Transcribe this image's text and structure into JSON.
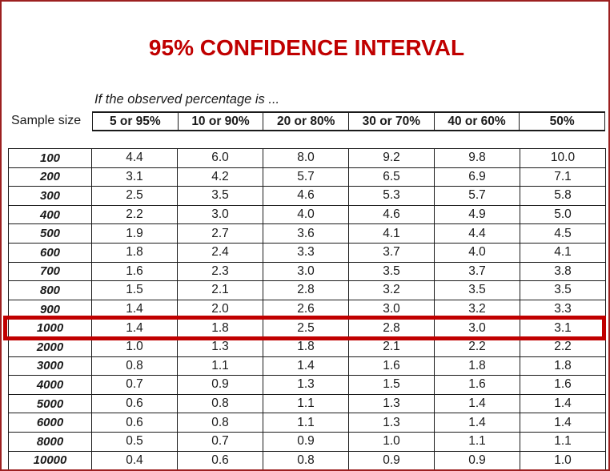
{
  "page": {
    "title": "95% CONFIDENCE INTERVAL",
    "caption": "If the observed percentage is ...",
    "sample_size_label": "Sample size"
  },
  "colors": {
    "title_red": "#c00000",
    "highlight_red": "#c00000",
    "page_border": "#9c2020",
    "grid_line": "#1a1a1a"
  },
  "chart_data": {
    "type": "table",
    "title": "95% CONFIDENCE INTERVAL",
    "caption": "If the observed percentage is ...",
    "row_header": "Sample size",
    "columns": [
      "5 or 95%",
      "10 or 90%",
      "20 or 80%",
      "30 or 70%",
      "40 or 60%",
      "50%"
    ],
    "highlighted_row": "1000",
    "rows": [
      {
        "sample_size": "100",
        "values": [
          "4.4",
          "6.0",
          "8.0",
          "9.2",
          "9.8",
          "10.0"
        ]
      },
      {
        "sample_size": "200",
        "values": [
          "3.1",
          "4.2",
          "5.7",
          "6.5",
          "6.9",
          "7.1"
        ]
      },
      {
        "sample_size": "300",
        "values": [
          "2.5",
          "3.5",
          "4.6",
          "5.3",
          "5.7",
          "5.8"
        ]
      },
      {
        "sample_size": "400",
        "values": [
          "2.2",
          "3.0",
          "4.0",
          "4.6",
          "4.9",
          "5.0"
        ]
      },
      {
        "sample_size": "500",
        "values": [
          "1.9",
          "2.7",
          "3.6",
          "4.1",
          "4.4",
          "4.5"
        ]
      },
      {
        "sample_size": "600",
        "values": [
          "1.8",
          "2.4",
          "3.3",
          "3.7",
          "4.0",
          "4.1"
        ]
      },
      {
        "sample_size": "700",
        "values": [
          "1.6",
          "2.3",
          "3.0",
          "3.5",
          "3.7",
          "3.8"
        ]
      },
      {
        "sample_size": "800",
        "values": [
          "1.5",
          "2.1",
          "2.8",
          "3.2",
          "3.5",
          "3.5"
        ]
      },
      {
        "sample_size": "900",
        "values": [
          "1.4",
          "2.0",
          "2.6",
          "3.0",
          "3.2",
          "3.3"
        ]
      },
      {
        "sample_size": "1000",
        "values": [
          "1.4",
          "1.8",
          "2.5",
          "2.8",
          "3.0",
          "3.1"
        ]
      },
      {
        "sample_size": "2000",
        "values": [
          "1.0",
          "1.3",
          "1.8",
          "2.1",
          "2.2",
          "2.2"
        ]
      },
      {
        "sample_size": "3000",
        "values": [
          "0.8",
          "1.1",
          "1.4",
          "1.6",
          "1.8",
          "1.8"
        ]
      },
      {
        "sample_size": "4000",
        "values": [
          "0.7",
          "0.9",
          "1.3",
          "1.5",
          "1.6",
          "1.6"
        ]
      },
      {
        "sample_size": "5000",
        "values": [
          "0.6",
          "0.8",
          "1.1",
          "1.3",
          "1.4",
          "1.4"
        ]
      },
      {
        "sample_size": "6000",
        "values": [
          "0.6",
          "0.8",
          "1.1",
          "1.3",
          "1.4",
          "1.4"
        ]
      },
      {
        "sample_size": "8000",
        "values": [
          "0.5",
          "0.7",
          "0.9",
          "1.0",
          "1.1",
          "1.1"
        ]
      },
      {
        "sample_size": "10000",
        "values": [
          "0.4",
          "0.6",
          "0.8",
          "0.9",
          "0.9",
          "1.0"
        ]
      }
    ]
  }
}
